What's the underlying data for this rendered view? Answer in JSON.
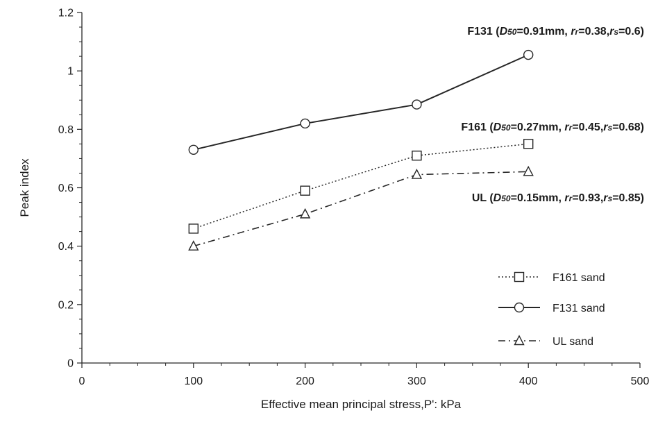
{
  "chart_data": {
    "type": "line",
    "title": "",
    "xlabel": "Effective mean principal stress,P': kPa",
    "ylabel": "Peak index",
    "xlim": [
      0,
      500
    ],
    "ylim": [
      0,
      1.2
    ],
    "x_ticks": [
      "0",
      "100",
      "200",
      "300",
      "400",
      "500"
    ],
    "y_ticks": [
      "0",
      "0.2",
      "0.4",
      "0.6",
      "0.8",
      "1",
      "1.2"
    ],
    "grid": false,
    "legend_position": "bottom-right",
    "series": [
      {
        "name": "F161 sand",
        "marker": "square",
        "line_style": "dotted",
        "x": [
          100,
          200,
          300,
          400
        ],
        "y": [
          0.46,
          0.59,
          0.71,
          0.75
        ]
      },
      {
        "name": "F131 sand",
        "marker": "circle",
        "line_style": "solid",
        "x": [
          100,
          200,
          300,
          400
        ],
        "y": [
          0.73,
          0.82,
          0.885,
          1.055
        ]
      },
      {
        "name": "UL sand",
        "marker": "triangle",
        "line_style": "dashdot",
        "x": [
          100,
          200,
          300,
          400
        ],
        "y": [
          0.4,
          0.51,
          0.645,
          0.655
        ]
      }
    ],
    "annotations": [
      {
        "label": "F131",
        "d50": "0.91mm",
        "rr": "0.38",
        "rs": "0.6"
      },
      {
        "label": "F161",
        "d50": "0.27mm",
        "rr": "0.45",
        "rs": "0.68"
      },
      {
        "label": "UL",
        "d50": "0.15mm",
        "rr": "0.93",
        "rs": "0.85"
      }
    ]
  }
}
